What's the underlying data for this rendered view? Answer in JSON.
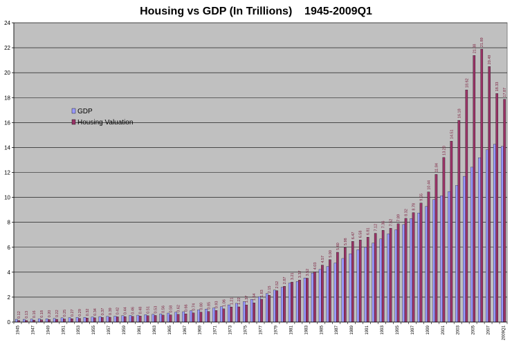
{
  "chart_data": {
    "type": "bar",
    "title": "Housing vs GDP (In Trillions)    1945-2009Q1",
    "xlabel": "",
    "ylabel": "",
    "ylim": [
      0,
      24
    ],
    "yticks": [
      0,
      2,
      4,
      6,
      8,
      10,
      12,
      14,
      16,
      18,
      20,
      22,
      24
    ],
    "grid": true,
    "legend_position": "left-center",
    "colors": {
      "gdp": "#9999ff",
      "housing": "#993366",
      "plot_bg": "#c0c0c0"
    },
    "categories": [
      "1945",
      "1946",
      "1947",
      "1948",
      "1949",
      "1950",
      "1951",
      "1952",
      "1953",
      "1954",
      "1955",
      "1956",
      "1957",
      "1958",
      "1959",
      "1960",
      "1961",
      "1962",
      "1963",
      "1964",
      "1965",
      "1966",
      "1967",
      "1968",
      "1969",
      "1970",
      "1971",
      "1972",
      "1973",
      "1974",
      "1975",
      "1976",
      "1977",
      "1978",
      "1979",
      "1980",
      "1981",
      "1982",
      "1983",
      "1984",
      "1985",
      "1986",
      "1987",
      "1988",
      "1989",
      "1990",
      "1991",
      "1992",
      "1993",
      "1994",
      "1995",
      "1996",
      "1997",
      "1998",
      "1999",
      "2000",
      "2001",
      "2002",
      "2003",
      "2004",
      "2005",
      "2006",
      "2007",
      "2008",
      "2009Q1"
    ],
    "x_tick_labels": [
      "1945",
      "1947",
      "1949",
      "1951",
      "1953",
      "1955",
      "1957",
      "1959",
      "1961",
      "1963",
      "1965",
      "1967",
      "1969",
      "1971",
      "1973",
      "1975",
      "1977",
      "1979",
      "1981",
      "1983",
      "1985",
      "1987",
      "1989",
      "1991",
      "1993",
      "1995",
      "1997",
      "1999",
      "2001",
      "2003",
      "2005",
      "2007",
      "2009Q1"
    ],
    "series": [
      {
        "name": "GDP",
        "values": [
          0.22,
          0.22,
          0.24,
          0.27,
          0.27,
          0.29,
          0.34,
          0.36,
          0.38,
          0.38,
          0.41,
          0.44,
          0.46,
          0.47,
          0.51,
          0.53,
          0.55,
          0.59,
          0.62,
          0.66,
          0.72,
          0.79,
          0.83,
          0.91,
          0.98,
          1.04,
          1.13,
          1.24,
          1.38,
          1.5,
          1.64,
          1.82,
          2.03,
          2.29,
          2.56,
          2.79,
          3.13,
          3.26,
          3.54,
          3.93,
          4.22,
          4.46,
          4.74,
          5.1,
          5.48,
          5.8,
          5.99,
          6.34,
          6.66,
          7.07,
          7.4,
          7.82,
          8.3,
          8.75,
          9.27,
          9.82,
          10.13,
          10.47,
          10.96,
          11.69,
          12.42,
          13.18,
          13.81,
          14.26,
          14.09
        ]
      },
      {
        "name": "Housing Valuation",
        "values": [
          0.12,
          0.13,
          0.16,
          0.18,
          0.2,
          0.22,
          0.25,
          0.27,
          0.29,
          0.32,
          0.34,
          0.37,
          0.39,
          0.42,
          0.44,
          0.46,
          0.48,
          0.51,
          0.53,
          0.56,
          0.58,
          0.62,
          0.66,
          0.74,
          0.8,
          0.85,
          0.93,
          1.06,
          1.21,
          1.22,
          1.37,
          1.54,
          1.83,
          2.15,
          2.52,
          2.87,
          3.21,
          3.37,
          3.52,
          4.03,
          4.57,
          5.0,
          5.6,
          5.98,
          6.47,
          6.58,
          6.81,
          7.12,
          7.36,
          7.52,
          7.89,
          8.32,
          8.78,
          9.55,
          10.44,
          11.84,
          13.2,
          14.51,
          16.18,
          18.62,
          21.38,
          21.89,
          20.49,
          18.33,
          17.87
        ]
      }
    ],
    "data_labels": [
      "0.12",
      "0.13",
      "0.16",
      "0.18",
      "0.20",
      "0.22",
      "0.25",
      "0.27",
      "0.29",
      "0.32",
      "0.34",
      "0.37",
      "0.39",
      "0.42",
      "0.44",
      "0.46",
      "0.48",
      "0.51",
      "0.53",
      "0.56",
      "0.58",
      "0.62",
      "0.66",
      "0.74",
      "0.80",
      "0.85",
      "0.93",
      "1.06",
      "1.21",
      "1.22",
      "1.37",
      "1.54",
      "1.83",
      "2.15",
      "2.52",
      "2.87",
      "3.21",
      "3.37",
      "3.52",
      "4.03",
      "4.57",
      "5.00",
      "5.60",
      "5.98",
      "6.47",
      "6.58",
      "6.81",
      "7.12",
      "7.36",
      "7.52",
      "7.89",
      "8.32",
      "8.78",
      "9.55",
      "10.44",
      "11.84",
      "13.20",
      "14.51",
      "16.18",
      "18.62",
      "21.38",
      "21.89",
      "20.49",
      "18.33",
      "17.87"
    ]
  }
}
